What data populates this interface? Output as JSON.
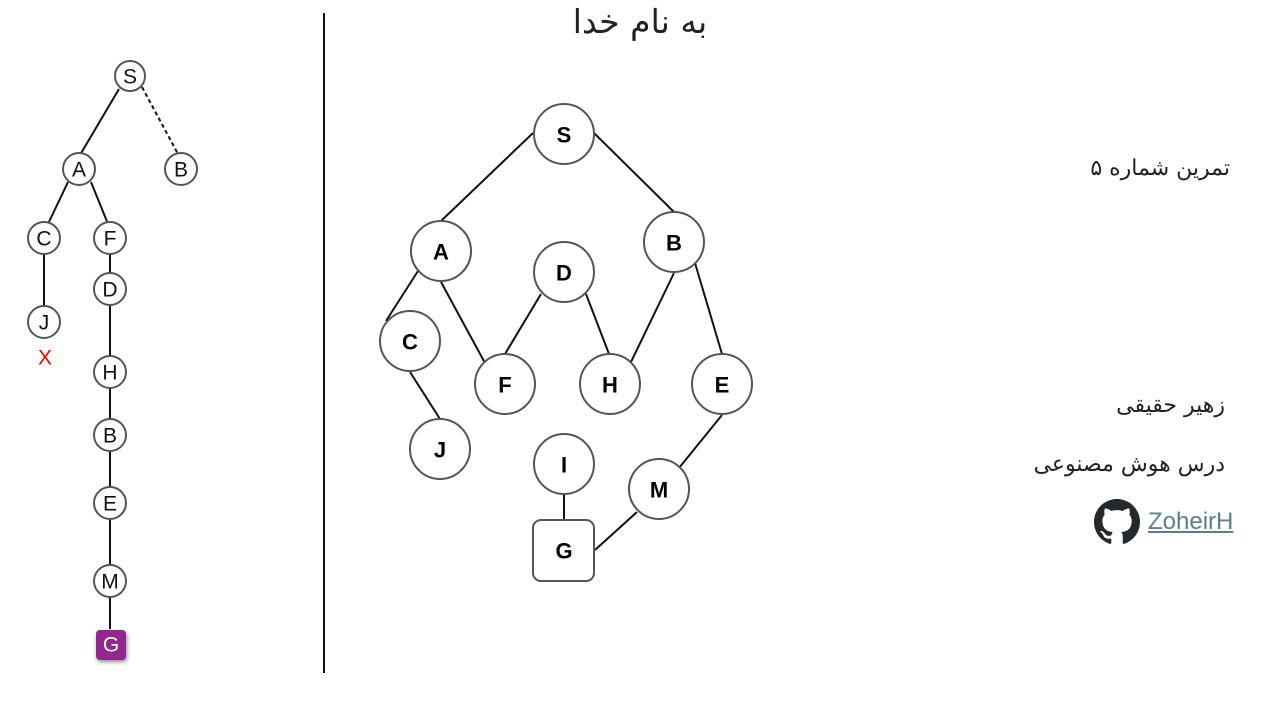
{
  "title": "به نام خدا",
  "search_tree": {
    "nodes": [
      {
        "id": "t-S",
        "label": "S"
      },
      {
        "id": "t-A",
        "label": "A"
      },
      {
        "id": "t-B1",
        "label": "B"
      },
      {
        "id": "t-C",
        "label": "C"
      },
      {
        "id": "t-F",
        "label": "F"
      },
      {
        "id": "t-D",
        "label": "D"
      },
      {
        "id": "t-J",
        "label": "J"
      },
      {
        "id": "t-H",
        "label": "H"
      },
      {
        "id": "t-B2",
        "label": "B"
      },
      {
        "id": "t-E",
        "label": "E"
      },
      {
        "id": "t-M",
        "label": "M"
      },
      {
        "id": "t-G",
        "label": "G",
        "goal": true
      }
    ],
    "dead_end_mark": "X",
    "colors": {
      "goal_fill": "#93278f",
      "dead_end": "#ff0000"
    }
  },
  "graph": {
    "nodes": [
      "S",
      "A",
      "B",
      "D",
      "C",
      "F",
      "H",
      "E",
      "J",
      "I",
      "M",
      "G"
    ],
    "goal": "G",
    "edges": [
      [
        "S",
        "A"
      ],
      [
        "S",
        "B"
      ],
      [
        "A",
        "C"
      ],
      [
        "A",
        "F"
      ],
      [
        "D",
        "F"
      ],
      [
        "D",
        "H"
      ],
      [
        "B",
        "H"
      ],
      [
        "B",
        "E"
      ],
      [
        "C",
        "J"
      ],
      [
        "I",
        "G"
      ],
      [
        "E",
        "M"
      ],
      [
        "M",
        "G"
      ]
    ]
  },
  "info": {
    "exercise": "تمرین شماره ۵",
    "author": "زهیر حقیقی",
    "course": "درس هوش مصنوعی",
    "github_user": "ZoheirH"
  }
}
